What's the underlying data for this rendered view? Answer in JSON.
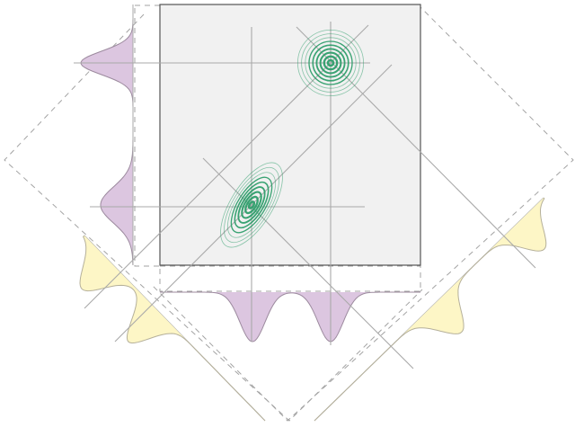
{
  "colors": {
    "background": "#ffffff",
    "plot_fill": "#f1f1f1",
    "plot_border": "#555555",
    "axis_line": "#a9a9a9",
    "dashed_frame": "#a3a3a3",
    "marginal_purple": "#dcc6e0",
    "marginal_purple_edge": "#9c8a9e",
    "marginal_yellow": "#fdf6c6",
    "marginal_yellow_edge": "#b5b09a",
    "contour_green": "#2f9e6b"
  },
  "diagram": {
    "description_type": "2D Gaussian mixture with axis-aligned and diagonal marginal projections",
    "components": [
      {
        "id": "upper-right",
        "shape": "circular",
        "rings": 8
      },
      {
        "id": "lower-left",
        "shape": "elongated-rotated",
        "rings": 8
      }
    ],
    "marginals": [
      "left-vertical",
      "bottom-horizontal",
      "diagonal-lower-left",
      "diagonal-lower-right"
    ]
  }
}
